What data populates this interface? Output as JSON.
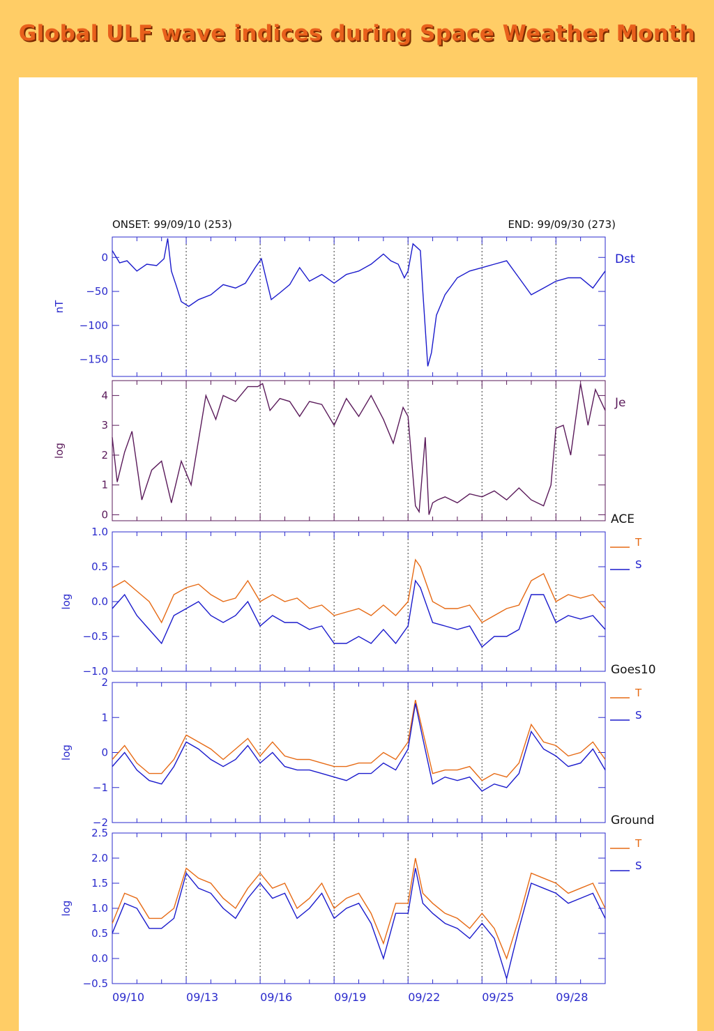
{
  "page": {
    "title": "Global ULF wave indices during Space Weather Month"
  },
  "header": {
    "onset": "ONSET: 99/09/10 (253)",
    "end": "END: 99/09/30 (273)"
  },
  "x_axis": {
    "start_doy": 253,
    "end_doy": 273,
    "tick_labels": [
      "09/10",
      "09/13",
      "09/16",
      "09/19",
      "09/22",
      "09/25",
      "09/28"
    ],
    "tick_doys": [
      253,
      256,
      259,
      262,
      265,
      268,
      271
    ],
    "dotted_gridlines_at": [
      256,
      259,
      262,
      265,
      268,
      271
    ]
  },
  "colors": {
    "blue": "#1a1acc",
    "purple": "#5a1a5a",
    "orange": "#e66a14"
  },
  "chart_data": [
    {
      "type": "line",
      "name": "Dst",
      "ylabel": "nT",
      "ylim": [
        -175,
        30
      ],
      "yticks": [
        0,
        -50,
        -100,
        -150
      ],
      "ytick_labels": [
        "0",
        "−50",
        "−100",
        "−150"
      ],
      "legend": [
        "Dst"
      ],
      "series": [
        {
          "name": "Dst",
          "color": "#1a1acc",
          "x": [
            253,
            253.3,
            253.6,
            254,
            254.4,
            254.8,
            255.1,
            255.25,
            255.4,
            255.6,
            255.8,
            256.1,
            256.5,
            257,
            257.5,
            258,
            258.4,
            258.8,
            259.05,
            259.2,
            259.45,
            259.8,
            260.2,
            260.6,
            261,
            261.5,
            262,
            262.5,
            263,
            263.5,
            264,
            264.3,
            264.6,
            264.85,
            265,
            265.2,
            265.5,
            265.6,
            265.8,
            265.95,
            266.15,
            266.5,
            267,
            267.5,
            268,
            268.5,
            269,
            269.5,
            270,
            270.5,
            271,
            271.5,
            272,
            272.5,
            273
          ],
          "y": [
            10,
            -8,
            -5,
            -20,
            -10,
            -12,
            -2,
            28,
            -20,
            -42,
            -65,
            -72,
            -62,
            -55,
            -40,
            -45,
            -38,
            -15,
            -2,
            -25,
            -62,
            -52,
            -40,
            -15,
            -35,
            -25,
            -38,
            -25,
            -20,
            -10,
            5,
            -5,
            -10,
            -30,
            -20,
            20,
            10,
            -50,
            -160,
            -140,
            -85,
            -55,
            -30,
            -20,
            -15,
            -10,
            -5,
            -30,
            -55,
            -45,
            -35,
            -30,
            -30,
            -45,
            -20
          ]
        }
      ]
    },
    {
      "type": "line",
      "name": "Je",
      "ylabel": "log",
      "ylim": [
        -0.2,
        4.5
      ],
      "yticks": [
        0,
        1,
        2,
        3,
        4
      ],
      "ytick_labels": [
        "0",
        "1",
        "2",
        "3",
        "4"
      ],
      "legend": [
        "Je"
      ],
      "series": [
        {
          "name": "Je",
          "color": "#5a1a5a",
          "x": [
            253,
            253.2,
            253.5,
            253.8,
            254.2,
            254.6,
            255,
            255.4,
            255.8,
            256.2,
            256.5,
            256.8,
            257.2,
            257.5,
            258,
            258.5,
            258.9,
            259.1,
            259.4,
            259.8,
            260.2,
            260.6,
            261,
            261.5,
            262,
            262.5,
            263,
            263.5,
            264,
            264.4,
            264.8,
            265,
            265.3,
            265.45,
            265.7,
            265.85,
            266,
            266.2,
            266.5,
            267,
            267.5,
            268,
            268.5,
            269,
            269.5,
            270,
            270.5,
            270.8,
            271,
            271.3,
            271.6,
            272,
            272.3,
            272.6,
            273
          ],
          "y": [
            2.6,
            1.1,
            2.1,
            2.8,
            0.5,
            1.5,
            1.8,
            0.4,
            1.8,
            1.0,
            2.5,
            4.0,
            3.2,
            4.0,
            3.8,
            4.3,
            4.3,
            4.4,
            3.5,
            3.9,
            3.8,
            3.3,
            3.8,
            3.7,
            3.0,
            3.9,
            3.3,
            4.0,
            3.2,
            2.4,
            3.6,
            3.3,
            0.3,
            0.1,
            2.6,
            0.0,
            0.4,
            0.5,
            0.6,
            0.4,
            0.7,
            0.6,
            0.8,
            0.5,
            0.9,
            0.5,
            0.3,
            1.0,
            2.9,
            3.0,
            2.0,
            4.4,
            3.0,
            4.2,
            3.5
          ]
        }
      ]
    },
    {
      "type": "line",
      "name": "ACE",
      "ylabel": "log",
      "ylim": [
        -1.0,
        1.0
      ],
      "yticks": [
        1.0,
        0.5,
        0.0,
        -0.5,
        -1.0
      ],
      "ytick_labels": [
        "1.0",
        "0.5",
        "0.0",
        "−0.5",
        "−1.0"
      ],
      "legend": [
        "ACE",
        "T",
        "S"
      ],
      "series": [
        {
          "name": "T",
          "color": "#e66a14",
          "x": [
            253,
            253.5,
            254,
            254.5,
            255,
            255.5,
            256,
            256.5,
            257,
            257.5,
            258,
            258.5,
            259,
            259.5,
            260,
            260.5,
            261,
            261.5,
            262,
            262.5,
            263,
            263.5,
            264,
            264.5,
            265,
            265.3,
            265.5,
            266,
            266.5,
            267,
            267.5,
            268,
            268.5,
            269,
            269.5,
            270,
            270.5,
            271,
            271.5,
            272,
            272.5,
            273
          ],
          "y": [
            0.2,
            0.3,
            0.15,
            0.0,
            -0.3,
            0.1,
            0.2,
            0.25,
            0.1,
            0.0,
            0.05,
            0.3,
            0.0,
            0.1,
            0.0,
            0.05,
            -0.1,
            -0.05,
            -0.2,
            -0.15,
            -0.1,
            -0.2,
            -0.05,
            -0.2,
            0.0,
            0.6,
            0.5,
            0.0,
            -0.1,
            -0.1,
            -0.05,
            -0.3,
            -0.2,
            -0.1,
            -0.05,
            0.3,
            0.4,
            0.0,
            0.1,
            0.05,
            0.1,
            -0.1
          ]
        },
        {
          "name": "S",
          "color": "#1a1acc",
          "x": [
            253,
            253.5,
            254,
            254.5,
            255,
            255.5,
            256,
            256.5,
            257,
            257.5,
            258,
            258.5,
            259,
            259.5,
            260,
            260.5,
            261,
            261.5,
            262,
            262.5,
            263,
            263.5,
            264,
            264.5,
            265,
            265.3,
            265.5,
            266,
            266.5,
            267,
            267.5,
            268,
            268.5,
            269,
            269.5,
            270,
            270.5,
            271,
            271.5,
            272,
            272.5,
            273
          ],
          "y": [
            -0.1,
            0.1,
            -0.2,
            -0.4,
            -0.6,
            -0.2,
            -0.1,
            0.0,
            -0.2,
            -0.3,
            -0.2,
            0.0,
            -0.35,
            -0.2,
            -0.3,
            -0.3,
            -0.4,
            -0.35,
            -0.6,
            -0.6,
            -0.5,
            -0.6,
            -0.4,
            -0.6,
            -0.35,
            0.3,
            0.2,
            -0.3,
            -0.35,
            -0.4,
            -0.35,
            -0.65,
            -0.5,
            -0.5,
            -0.4,
            0.1,
            0.1,
            -0.3,
            -0.2,
            -0.25,
            -0.2,
            -0.4
          ]
        }
      ]
    },
    {
      "type": "line",
      "name": "Goes10",
      "ylabel": "log",
      "ylim": [
        -2,
        2
      ],
      "yticks": [
        2,
        1,
        0,
        -1,
        -2
      ],
      "ytick_labels": [
        "2",
        "1",
        "0",
        "−1",
        "−2"
      ],
      "legend": [
        "Goes10",
        "T",
        "S"
      ],
      "series": [
        {
          "name": "T",
          "color": "#e66a14",
          "x": [
            253,
            253.5,
            254,
            254.5,
            255,
            255.5,
            256,
            256.5,
            257,
            257.5,
            258,
            258.5,
            259,
            259.5,
            260,
            260.5,
            261,
            261.5,
            262,
            262.5,
            263,
            263.5,
            264,
            264.5,
            265,
            265.3,
            265.6,
            266,
            266.5,
            267,
            267.5,
            268,
            268.5,
            269,
            269.5,
            270,
            270.5,
            271,
            271.5,
            272,
            272.5,
            273
          ],
          "y": [
            -0.2,
            0.2,
            -0.3,
            -0.6,
            -0.6,
            -0.2,
            0.5,
            0.3,
            0.1,
            -0.2,
            0.1,
            0.4,
            -0.1,
            0.3,
            -0.1,
            -0.2,
            -0.2,
            -0.3,
            -0.4,
            -0.4,
            -0.3,
            -0.3,
            0.0,
            -0.2,
            0.3,
            1.5,
            0.6,
            -0.6,
            -0.5,
            -0.5,
            -0.4,
            -0.8,
            -0.6,
            -0.7,
            -0.3,
            0.8,
            0.3,
            0.2,
            -0.1,
            0.0,
            0.3,
            -0.2
          ]
        },
        {
          "name": "S",
          "color": "#1a1acc",
          "x": [
            253,
            253.5,
            254,
            254.5,
            255,
            255.5,
            256,
            256.5,
            257,
            257.5,
            258,
            258.5,
            259,
            259.5,
            260,
            260.5,
            261,
            261.5,
            262,
            262.5,
            263,
            263.5,
            264,
            264.5,
            265,
            265.3,
            265.6,
            266,
            266.5,
            267,
            267.5,
            268,
            268.5,
            269,
            269.5,
            270,
            270.5,
            271,
            271.5,
            272,
            272.5,
            273
          ],
          "y": [
            -0.4,
            0.0,
            -0.5,
            -0.8,
            -0.9,
            -0.4,
            0.3,
            0.1,
            -0.2,
            -0.4,
            -0.2,
            0.2,
            -0.3,
            0.0,
            -0.4,
            -0.5,
            -0.5,
            -0.6,
            -0.7,
            -0.8,
            -0.6,
            -0.6,
            -0.3,
            -0.5,
            0.1,
            1.4,
            0.4,
            -0.9,
            -0.7,
            -0.8,
            -0.7,
            -1.1,
            -0.9,
            -1.0,
            -0.6,
            0.6,
            0.1,
            -0.1,
            -0.4,
            -0.3,
            0.1,
            -0.5
          ]
        }
      ]
    },
    {
      "type": "line",
      "name": "Ground",
      "ylabel": "log",
      "ylim": [
        -0.5,
        2.5
      ],
      "yticks": [
        2.5,
        2.0,
        1.5,
        1.0,
        0.5,
        0.0,
        -0.5
      ],
      "ytick_labels": [
        "2.5",
        "2.0",
        "1.5",
        "1.0",
        "0.5",
        "0.0",
        "−0.5"
      ],
      "legend": [
        "Ground",
        "T",
        "S"
      ],
      "series": [
        {
          "name": "T",
          "color": "#e66a14",
          "x": [
            253,
            253.5,
            254,
            254.5,
            255,
            255.5,
            256,
            256.5,
            257,
            257.5,
            258,
            258.5,
            259,
            259.5,
            260,
            260.5,
            261,
            261.5,
            262,
            262.5,
            263,
            263.5,
            264,
            264.5,
            265,
            265.3,
            265.6,
            266,
            266.5,
            267,
            267.5,
            268,
            268.5,
            269,
            269.5,
            270,
            270.5,
            271,
            271.5,
            272,
            272.5,
            273
          ],
          "y": [
            0.7,
            1.3,
            1.2,
            0.8,
            0.8,
            1.0,
            1.8,
            1.6,
            1.5,
            1.2,
            1.0,
            1.4,
            1.7,
            1.4,
            1.5,
            1.0,
            1.2,
            1.5,
            1.0,
            1.2,
            1.3,
            0.9,
            0.3,
            1.1,
            1.1,
            2.0,
            1.3,
            1.1,
            0.9,
            0.8,
            0.6,
            0.9,
            0.6,
            0.0,
            0.8,
            1.7,
            1.6,
            1.5,
            1.3,
            1.4,
            1.5,
            1.0
          ]
        },
        {
          "name": "S",
          "color": "#1a1acc",
          "x": [
            253,
            253.5,
            254,
            254.5,
            255,
            255.5,
            256,
            256.5,
            257,
            257.5,
            258,
            258.5,
            259,
            259.5,
            260,
            260.5,
            261,
            261.5,
            262,
            262.5,
            263,
            263.5,
            264,
            264.5,
            265,
            265.3,
            265.6,
            266,
            266.5,
            267,
            267.5,
            268,
            268.5,
            269,
            269.5,
            270,
            270.5,
            271,
            271.5,
            272,
            272.5,
            273
          ],
          "y": [
            0.5,
            1.1,
            1.0,
            0.6,
            0.6,
            0.8,
            1.7,
            1.4,
            1.3,
            1.0,
            0.8,
            1.2,
            1.5,
            1.2,
            1.3,
            0.8,
            1.0,
            1.3,
            0.8,
            1.0,
            1.1,
            0.7,
            0.0,
            0.9,
            0.9,
            1.8,
            1.1,
            0.9,
            0.7,
            0.6,
            0.4,
            0.7,
            0.4,
            -0.4,
            0.6,
            1.5,
            1.4,
            1.3,
            1.1,
            1.2,
            1.3,
            0.8
          ]
        }
      ]
    }
  ]
}
